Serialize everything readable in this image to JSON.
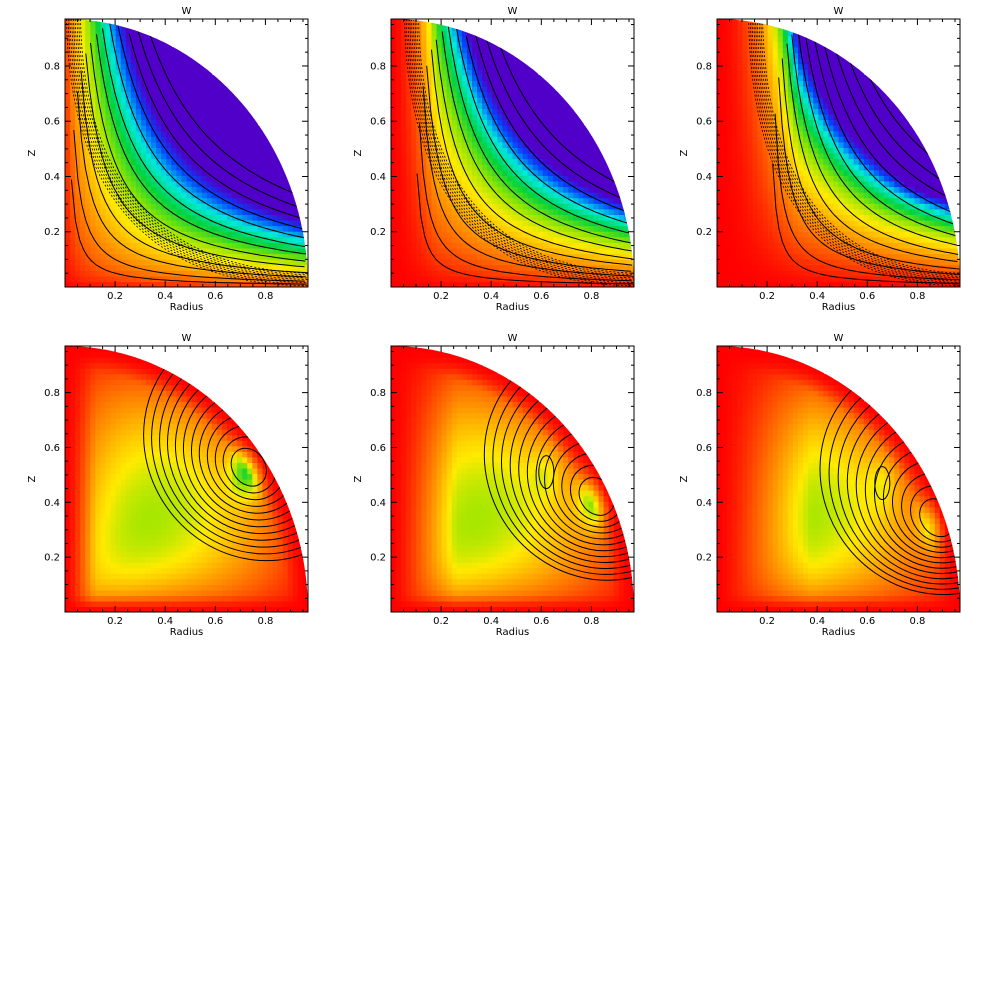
{
  "chart_data": [
    {
      "type": "heatmap",
      "title": "W",
      "xlabel": "Radius",
      "ylabel": "Z",
      "xlim": [
        0,
        0.97
      ],
      "ylim": [
        0,
        0.97
      ],
      "xticks": [
        "0.2",
        "0.4",
        "0.6",
        "0.8"
      ],
      "yticks": [
        "0.2",
        "0.4",
        "0.6",
        "0.8"
      ],
      "domain": "quarter-disk",
      "colormap": "rainbow",
      "contours": "solid and dashed",
      "grid": false,
      "extrema": [
        {
          "r": 0.72,
          "z": 0.66
        }
      ]
    },
    {
      "type": "heatmap",
      "title": "W",
      "xlabel": "Radius",
      "ylabel": "Z",
      "xlim": [
        0,
        0.97
      ],
      "ylim": [
        0,
        0.97
      ],
      "xticks": [
        "0.2",
        "0.4",
        "0.6",
        "0.8"
      ],
      "yticks": [
        "0.2",
        "0.4",
        "0.6",
        "0.8"
      ],
      "domain": "quarter-disk",
      "colormap": "rainbow",
      "contours": "solid and dashed",
      "grid": false,
      "extrema": [
        {
          "r": 0.82,
          "z": 0.55
        }
      ]
    },
    {
      "type": "heatmap",
      "title": "W",
      "xlabel": "Radius",
      "ylabel": "Z",
      "xlim": [
        0,
        0.97
      ],
      "ylim": [
        0,
        0.97
      ],
      "xticks": [
        "0.2",
        "0.4",
        "0.6",
        "0.8"
      ],
      "yticks": [
        "0.2",
        "0.4",
        "0.6",
        "0.8"
      ],
      "domain": "quarter-disk",
      "colormap": "rainbow",
      "contours": "solid and dashed",
      "grid": false,
      "extrema": [
        {
          "r": 0.88,
          "z": 0.44
        }
      ]
    },
    {
      "type": "heatmap",
      "title": "W",
      "xlabel": "Radius",
      "ylabel": "Z",
      "xlim": [
        0,
        0.97
      ],
      "ylim": [
        0,
        0.97
      ],
      "xticks": [
        "0.2",
        "0.4",
        "0.6",
        "0.8"
      ],
      "yticks": [
        "0.2",
        "0.4",
        "0.6",
        "0.8"
      ],
      "domain": "quarter-disk",
      "colormap": "rainbow",
      "contours": "solid",
      "grid": false,
      "extrema": [
        {
          "r": 0.73,
          "z": 0.52
        }
      ]
    },
    {
      "type": "heatmap",
      "title": "W",
      "xlabel": "Radius",
      "ylabel": "Z",
      "xlim": [
        0,
        0.97
      ],
      "ylim": [
        0,
        0.97
      ],
      "xticks": [
        "0.2",
        "0.4",
        "0.6",
        "0.8"
      ],
      "yticks": [
        "0.2",
        "0.4",
        "0.6",
        "0.8"
      ],
      "domain": "quarter-disk",
      "colormap": "rainbow",
      "contours": "solid",
      "grid": false,
      "extrema": [
        {
          "r": 0.82,
          "z": 0.41
        },
        {
          "r": 0.62,
          "z": 0.51
        }
      ]
    },
    {
      "type": "heatmap",
      "title": "W",
      "xlabel": "Radius",
      "ylabel": "Z",
      "xlim": [
        0,
        0.97
      ],
      "ylim": [
        0,
        0.97
      ],
      "xticks": [
        "0.2",
        "0.4",
        "0.6",
        "0.8"
      ],
      "yticks": [
        "0.2",
        "0.4",
        "0.6",
        "0.8"
      ],
      "domain": "quarter-disk",
      "colormap": "rainbow",
      "contours": "solid",
      "grid": false,
      "extrema": [
        {
          "r": 0.88,
          "z": 0.33
        },
        {
          "r": 0.66,
          "z": 0.47
        }
      ]
    }
  ]
}
